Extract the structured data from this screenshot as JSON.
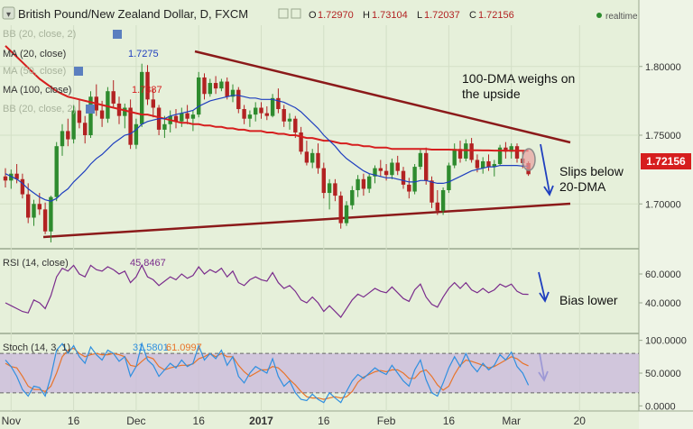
{
  "header": {
    "title": "British Pound/New Zealand Dollar, D, FXCM",
    "ohlc": [
      {
        "label": "O",
        "value": "1.72970"
      },
      {
        "label": "H",
        "value": "1.73104"
      },
      {
        "label": "L",
        "value": "1.72037"
      },
      {
        "label": "C",
        "value": "1.72156"
      }
    ],
    "realtime": "realtime"
  },
  "legend": {
    "bb": "BB (20, close, 2)",
    "ma20": "MA (20, close)",
    "ma20_value": "1.7275",
    "ma50": "MA (50, close)",
    "ma100": "MA (100, close)",
    "ma100_value": "1.7387",
    "bb2": "BB (20, close, 2)"
  },
  "price_label": "1.72156",
  "annotations": {
    "dma100": [
      "100-DMA weighs on",
      "the upside"
    ],
    "slips": [
      "Slips below",
      "20-DMA"
    ],
    "bias": "Bias lower"
  },
  "rsi": {
    "label": "RSI (14, close)",
    "value": "45.8467"
  },
  "stoch": {
    "label": "Stoch (14, 3, 1)",
    "k_value": "31.5801",
    "d_value": "61.0997"
  },
  "colors": {
    "bg": "#e6f0da",
    "up": "#2e8b2e",
    "down": "#b22222",
    "ma20": "#1f3fbf",
    "ma100": "#d61e1e",
    "trend": "#8b1a1a",
    "rsi": "#7a2c8c",
    "stoch_k": "#2f8fe0",
    "stoch_d": "#e8742a",
    "stoch_band": "#c9b8dc",
    "arrow": "#1f3fbf"
  },
  "chart_data": {
    "type": "candlestick",
    "price_ylim": [
      1.67,
      1.83
    ],
    "price_ticks": [
      "1.80000",
      "1.75000",
      "1.70000"
    ],
    "rsi_ylim": [
      20,
      75
    ],
    "rsi_ticks": [
      "60.0000",
      "40.0000"
    ],
    "stoch_ylim": [
      -5,
      105
    ],
    "stoch_ticks": [
      "100.0000",
      "50.0000",
      "0.0000"
    ],
    "x_labels": [
      {
        "i": 1,
        "label": "Nov"
      },
      {
        "i": 12,
        "label": "16"
      },
      {
        "i": 23,
        "label": "Dec"
      },
      {
        "i": 34,
        "label": "16"
      },
      {
        "i": 45,
        "label": "2017"
      },
      {
        "i": 56,
        "label": "16"
      },
      {
        "i": 67,
        "label": "Feb"
      },
      {
        "i": 78,
        "label": "16"
      },
      {
        "i": 89,
        "label": "Mar"
      },
      {
        "i": 101,
        "label": "20"
      }
    ],
    "candles": [
      [
        1.72,
        1.726,
        1.712,
        1.717
      ],
      [
        1.717,
        1.725,
        1.711,
        1.722
      ],
      [
        1.722,
        1.729,
        1.715,
        1.718
      ],
      [
        1.718,
        1.722,
        1.704,
        1.707
      ],
      [
        1.707,
        1.715,
        1.686,
        1.69
      ],
      [
        1.69,
        1.703,
        1.684,
        1.7
      ],
      [
        1.7,
        1.708,
        1.692,
        1.696
      ],
      [
        1.696,
        1.701,
        1.678,
        1.68
      ],
      [
        1.68,
        1.706,
        1.672,
        1.705
      ],
      [
        1.705,
        1.745,
        1.702,
        1.742
      ],
      [
        1.742,
        1.758,
        1.735,
        1.753
      ],
      [
        1.753,
        1.762,
        1.742,
        1.747
      ],
      [
        1.747,
        1.772,
        1.744,
        1.768
      ],
      [
        1.768,
        1.776,
        1.755,
        1.759
      ],
      [
        1.759,
        1.764,
        1.744,
        1.75
      ],
      [
        1.75,
        1.782,
        1.748,
        1.778
      ],
      [
        1.778,
        1.787,
        1.764,
        1.768
      ],
      [
        1.768,
        1.775,
        1.756,
        1.762
      ],
      [
        1.762,
        1.785,
        1.759,
        1.782
      ],
      [
        1.782,
        1.79,
        1.77,
        1.773
      ],
      [
        1.773,
        1.778,
        1.758,
        1.764
      ],
      [
        1.764,
        1.773,
        1.755,
        1.77
      ],
      [
        1.77,
        1.776,
        1.74,
        1.743
      ],
      [
        1.743,
        1.762,
        1.74,
        1.758
      ],
      [
        1.758,
        1.802,
        1.756,
        1.796
      ],
      [
        1.796,
        1.801,
        1.772,
        1.776
      ],
      [
        1.776,
        1.784,
        1.763,
        1.77
      ],
      [
        1.77,
        1.772,
        1.75,
        1.754
      ],
      [
        1.754,
        1.764,
        1.748,
        1.758
      ],
      [
        1.758,
        1.768,
        1.752,
        1.764
      ],
      [
        1.764,
        1.769,
        1.755,
        1.76
      ],
      [
        1.76,
        1.77,
        1.756,
        1.766
      ],
      [
        1.766,
        1.772,
        1.758,
        1.762
      ],
      [
        1.762,
        1.768,
        1.753,
        1.765
      ],
      [
        1.765,
        1.796,
        1.763,
        1.792
      ],
      [
        1.792,
        1.795,
        1.776,
        1.78
      ],
      [
        1.78,
        1.791,
        1.778,
        1.788
      ],
      [
        1.788,
        1.793,
        1.78,
        1.784
      ],
      [
        1.784,
        1.791,
        1.782,
        1.789
      ],
      [
        1.789,
        1.792,
        1.776,
        1.778
      ],
      [
        1.778,
        1.787,
        1.774,
        1.783
      ],
      [
        1.783,
        1.785,
        1.766,
        1.769
      ],
      [
        1.769,
        1.772,
        1.758,
        1.762
      ],
      [
        1.762,
        1.768,
        1.756,
        1.765
      ],
      [
        1.765,
        1.774,
        1.76,
        1.77
      ],
      [
        1.77,
        1.774,
        1.762,
        1.766
      ],
      [
        1.766,
        1.771,
        1.761,
        1.764
      ],
      [
        1.764,
        1.78,
        1.763,
        1.777
      ],
      [
        1.777,
        1.784,
        1.766,
        1.769
      ],
      [
        1.769,
        1.772,
        1.756,
        1.76
      ],
      [
        1.76,
        1.766,
        1.754,
        1.762
      ],
      [
        1.762,
        1.764,
        1.748,
        1.752
      ],
      [
        1.752,
        1.756,
        1.736,
        1.738
      ],
      [
        1.738,
        1.746,
        1.728,
        1.73
      ],
      [
        1.73,
        1.74,
        1.726,
        1.737
      ],
      [
        1.737,
        1.744,
        1.722,
        1.726
      ],
      [
        1.726,
        1.73,
        1.704,
        1.708
      ],
      [
        1.708,
        1.718,
        1.696,
        1.715
      ],
      [
        1.715,
        1.718,
        1.702,
        1.706
      ],
      [
        1.706,
        1.709,
        1.682,
        1.686
      ],
      [
        1.686,
        1.702,
        1.684,
        1.699
      ],
      [
        1.699,
        1.713,
        1.696,
        1.71
      ],
      [
        1.71,
        1.721,
        1.705,
        1.718
      ],
      [
        1.718,
        1.722,
        1.706,
        1.711
      ],
      [
        1.711,
        1.722,
        1.708,
        1.72
      ],
      [
        1.72,
        1.728,
        1.715,
        1.726
      ],
      [
        1.726,
        1.732,
        1.72,
        1.724
      ],
      [
        1.724,
        1.729,
        1.717,
        1.721
      ],
      [
        1.721,
        1.733,
        1.718,
        1.73
      ],
      [
        1.73,
        1.735,
        1.721,
        1.724
      ],
      [
        1.724,
        1.727,
        1.711,
        1.714
      ],
      [
        1.714,
        1.719,
        1.704,
        1.709
      ],
      [
        1.709,
        1.729,
        1.707,
        1.727
      ],
      [
        1.727,
        1.74,
        1.725,
        1.737
      ],
      [
        1.737,
        1.741,
        1.714,
        1.717
      ],
      [
        1.717,
        1.72,
        1.697,
        1.701
      ],
      [
        1.701,
        1.71,
        1.692,
        1.695
      ],
      [
        1.695,
        1.712,
        1.692,
        1.71
      ],
      [
        1.71,
        1.73,
        1.708,
        1.728
      ],
      [
        1.728,
        1.744,
        1.726,
        1.74
      ],
      [
        1.74,
        1.746,
        1.73,
        1.733
      ],
      [
        1.733,
        1.747,
        1.731,
        1.744
      ],
      [
        1.744,
        1.748,
        1.73,
        1.732
      ],
      [
        1.732,
        1.736,
        1.723,
        1.726
      ],
      [
        1.726,
        1.734,
        1.722,
        1.731
      ],
      [
        1.731,
        1.736,
        1.724,
        1.727
      ],
      [
        1.727,
        1.732,
        1.72,
        1.729
      ],
      [
        1.729,
        1.743,
        1.728,
        1.741
      ],
      [
        1.741,
        1.745,
        1.733,
        1.738
      ],
      [
        1.738,
        1.744,
        1.733,
        1.742
      ],
      [
        1.742,
        1.744,
        1.73,
        1.733
      ],
      [
        1.733,
        1.738,
        1.726,
        1.7297
      ],
      [
        1.7297,
        1.731,
        1.7204,
        1.7216
      ]
    ],
    "ma20": [
      1.722,
      1.72,
      1.718,
      1.715,
      1.711,
      1.708,
      1.705,
      1.703,
      1.702,
      1.704,
      1.708,
      1.711,
      1.716,
      1.72,
      1.724,
      1.729,
      1.733,
      1.736,
      1.74,
      1.744,
      1.747,
      1.75,
      1.751,
      1.754,
      1.758,
      1.76,
      1.761,
      1.762,
      1.762,
      1.764,
      1.765,
      1.766,
      1.767,
      1.768,
      1.771,
      1.773,
      1.775,
      1.776,
      1.777,
      1.778,
      1.779,
      1.779,
      1.778,
      1.777,
      1.777,
      1.776,
      1.776,
      1.776,
      1.775,
      1.774,
      1.772,
      1.77,
      1.767,
      1.763,
      1.759,
      1.755,
      1.75,
      1.746,
      1.742,
      1.737,
      1.733,
      1.73,
      1.727,
      1.724,
      1.722,
      1.721,
      1.72,
      1.719,
      1.719,
      1.718,
      1.717,
      1.716,
      1.716,
      1.717,
      1.717,
      1.716,
      1.715,
      1.715,
      1.716,
      1.718,
      1.72,
      1.722,
      1.724,
      1.725,
      1.726,
      1.727,
      1.727,
      1.728,
      1.728,
      1.728,
      1.728,
      1.7275,
      1.7275
    ],
    "ma100": [
      1.815,
      1.811,
      1.807,
      1.803,
      1.799,
      1.795,
      1.791,
      1.788,
      1.785,
      1.782,
      1.78,
      1.778,
      1.777,
      1.776,
      1.775,
      1.774,
      1.773,
      1.772,
      1.771,
      1.77,
      1.769,
      1.768,
      1.767,
      1.766,
      1.765,
      1.765,
      1.764,
      1.763,
      1.762,
      1.761,
      1.76,
      1.759,
      1.759,
      1.758,
      1.758,
      1.757,
      1.757,
      1.756,
      1.756,
      1.755,
      1.755,
      1.754,
      1.754,
      1.753,
      1.753,
      1.753,
      1.752,
      1.752,
      1.751,
      1.751,
      1.75,
      1.75,
      1.749,
      1.748,
      1.748,
      1.747,
      1.746,
      1.746,
      1.745,
      1.744,
      1.744,
      1.743,
      1.743,
      1.742,
      1.742,
      1.741,
      1.741,
      1.741,
      1.74,
      1.74,
      1.74,
      1.74,
      1.74,
      1.74,
      1.74,
      1.7395,
      1.7395,
      1.7395,
      1.7395,
      1.7393,
      1.7392,
      1.7391,
      1.739,
      1.739,
      1.7389,
      1.7389,
      1.7388,
      1.7388,
      1.7388,
      1.7387,
      1.7387,
      1.7387,
      1.7387
    ],
    "rsi": [
      40,
      38,
      36,
      34,
      33,
      42,
      40,
      36,
      45,
      58,
      64,
      62,
      66,
      60,
      58,
      66,
      63,
      62,
      65,
      63,
      60,
      62,
      54,
      58,
      66,
      58,
      56,
      52,
      55,
      58,
      56,
      60,
      57,
      59,
      65,
      60,
      63,
      61,
      64,
      58,
      62,
      54,
      52,
      56,
      58,
      56,
      55,
      61,
      54,
      50,
      52,
      48,
      42,
      40,
      44,
      40,
      34,
      38,
      34,
      30,
      36,
      42,
      46,
      44,
      47,
      50,
      48,
      47,
      51,
      47,
      43,
      41,
      49,
      53,
      44,
      39,
      37,
      44,
      50,
      54,
      50,
      54,
      49,
      47,
      50,
      47,
      49,
      53,
      51,
      53,
      48,
      46,
      45.85
    ],
    "stoch_k": [
      70,
      60,
      45,
      25,
      15,
      30,
      28,
      15,
      45,
      85,
      95,
      80,
      92,
      75,
      65,
      90,
      78,
      70,
      85,
      80,
      68,
      75,
      45,
      60,
      95,
      70,
      62,
      45,
      55,
      65,
      58,
      70,
      60,
      65,
      92,
      70,
      80,
      72,
      85,
      62,
      75,
      45,
      35,
      50,
      60,
      55,
      50,
      72,
      45,
      30,
      38,
      20,
      10,
      8,
      18,
      10,
      5,
      20,
      12,
      5,
      22,
      38,
      48,
      42,
      50,
      58,
      52,
      48,
      62,
      50,
      38,
      30,
      55,
      70,
      40,
      20,
      15,
      35,
      58,
      75,
      60,
      80,
      62,
      52,
      65,
      55,
      62,
      78,
      70,
      82,
      60,
      50,
      31.58
    ],
    "stoch_d": [
      65,
      60,
      58,
      45,
      30,
      25,
      25,
      22,
      30,
      50,
      75,
      85,
      88,
      80,
      75,
      78,
      80,
      78,
      78,
      80,
      78,
      75,
      62,
      60,
      68,
      75,
      72,
      60,
      55,
      58,
      60,
      62,
      62,
      64,
      72,
      75,
      80,
      75,
      80,
      75,
      75,
      62,
      52,
      45,
      50,
      55,
      55,
      60,
      58,
      50,
      40,
      32,
      22,
      14,
      12,
      12,
      10,
      12,
      14,
      12,
      14,
      22,
      36,
      44,
      48,
      52,
      54,
      52,
      55,
      55,
      50,
      42,
      42,
      52,
      55,
      45,
      32,
      24,
      30,
      48,
      62,
      70,
      68,
      65,
      62,
      58,
      60,
      65,
      70,
      75,
      72,
      65,
      61.1
    ]
  }
}
